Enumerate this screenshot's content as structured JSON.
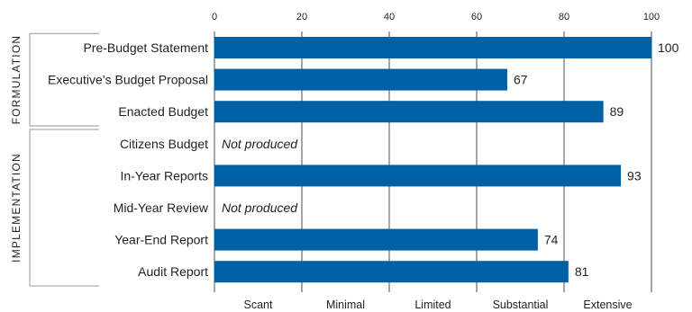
{
  "chart_data": {
    "type": "bar",
    "orientation": "horizontal",
    "categories": [
      "Pre-Budget Statement",
      "Executive’s Budget Proposal",
      "Enacted Budget",
      "Citizens Budget",
      "In-Year Reports",
      "Mid-Year Review",
      "Year-End Report",
      "Audit Report"
    ],
    "values": [
      100,
      67,
      89,
      null,
      93,
      null,
      74,
      81
    ],
    "value_labels": [
      "100",
      "67",
      "89",
      "Not produced",
      "93",
      "Not produced",
      "74",
      "81"
    ],
    "xlim": [
      0,
      100
    ],
    "x_ticks": [
      "0",
      "20",
      "40",
      "60",
      "80",
      "100"
    ],
    "x_bands": [
      "Scant",
      "Minimal",
      "Limited",
      "Substantial",
      "Extensive"
    ],
    "groups": [
      {
        "label": "FORMULATION",
        "categories": [
          0,
          2
        ]
      },
      {
        "label": "IMPLEMENTATION",
        "categories": [
          3,
          7
        ]
      }
    ],
    "grid": true,
    "bar_color": "#0060a6",
    "text_color": "#231f20"
  }
}
